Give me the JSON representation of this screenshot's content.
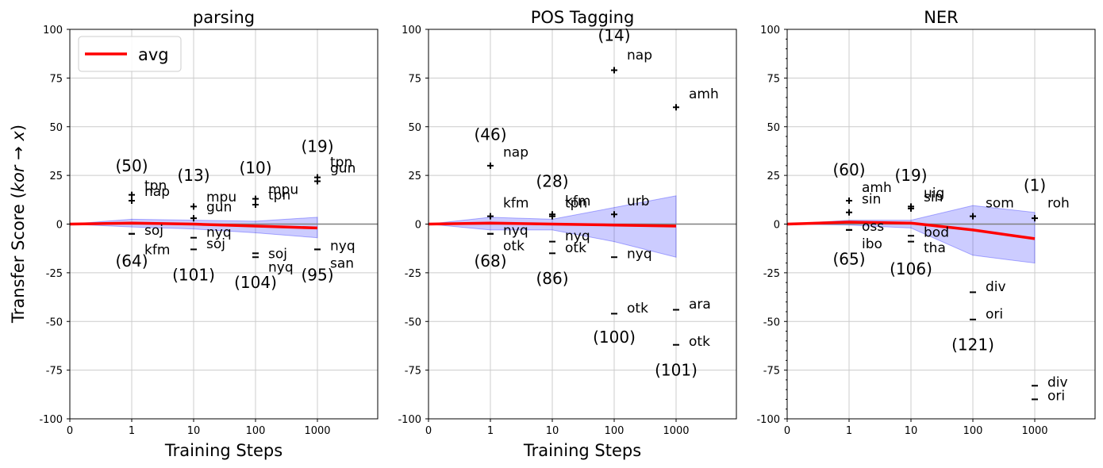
{
  "figure": {
    "ylabel_prefix": "Transfer Score (",
    "ylabel_italic": "kor",
    "ylabel_arrow": " → ",
    "ylabel_var": "x",
    "ylabel_suffix": ")",
    "legend_label": "avg"
  },
  "colors": {
    "avg_line": "#ff0000",
    "band": "#0000ff",
    "grid": "#cccccc",
    "zero_line": "#808080"
  },
  "chart_data": [
    {
      "type": "scatter",
      "title": "parsing",
      "xlabel": "Training Steps",
      "ylim": [
        -100,
        100
      ],
      "yticks": [
        -100,
        -75,
        -50,
        -25,
        0,
        25,
        50,
        75,
        100
      ],
      "xticks": [
        {
          "step": 0,
          "label": "0"
        },
        {
          "step": 1,
          "label": "1"
        },
        {
          "step": 10,
          "label": "10"
        },
        {
          "step": 100,
          "label": "100"
        },
        {
          "step": 1000,
          "label": "1000"
        }
      ],
      "avg": {
        "x": [
          0,
          1,
          10,
          100,
          1000
        ],
        "y": [
          0,
          0.5,
          0,
          -1,
          -2
        ]
      },
      "band": {
        "x": [
          0,
          1,
          10,
          100,
          1000
        ],
        "upper": [
          0,
          2.5,
          2,
          1.5,
          3.5
        ],
        "lower": [
          0,
          -1.5,
          -2.5,
          -4.5,
          -7
        ]
      },
      "counts": [
        {
          "step": 1,
          "label": "(50)",
          "y": 30
        },
        {
          "step": 1,
          "label": "(64)",
          "y": -19
        },
        {
          "step": 10,
          "label": "(13)",
          "y": 25
        },
        {
          "step": 10,
          "label": "(101)",
          "y": -26
        },
        {
          "step": 100,
          "label": "(10)",
          "y": 29
        },
        {
          "step": 100,
          "label": "(104)",
          "y": -30
        },
        {
          "step": 1000,
          "label": "(19)",
          "y": 40
        },
        {
          "step": 1000,
          "label": "(95)",
          "y": -26
        }
      ],
      "points": [
        {
          "step": 1,
          "y": 15,
          "label": "tpn",
          "ly": 20
        },
        {
          "step": 1,
          "y": 12,
          "label": "nap",
          "ly": 17
        },
        {
          "step": 1,
          "y": -5,
          "label": "soj",
          "ly": -3
        },
        {
          "step": 1,
          "y": -5,
          "label": "kfm",
          "ly": -13
        },
        {
          "step": 10,
          "y": 9,
          "label": "mpu",
          "ly": 14
        },
        {
          "step": 10,
          "y": 3,
          "label": "gun",
          "ly": 9
        },
        {
          "step": 10,
          "y": -7,
          "label": "nyq",
          "ly": -4
        },
        {
          "step": 10,
          "y": -13,
          "label": "soj",
          "ly": -10
        },
        {
          "step": 100,
          "y": 13,
          "label": "mpu",
          "ly": 18
        },
        {
          "step": 100,
          "y": 10,
          "label": "tpn",
          "ly": 15
        },
        {
          "step": 100,
          "y": -15,
          "label": "soj",
          "ly": -15
        },
        {
          "step": 100,
          "y": -17,
          "label": "nyq",
          "ly": -22
        },
        {
          "step": 1000,
          "y": 24,
          "label": "tpn",
          "ly": 32
        },
        {
          "step": 1000,
          "y": 22,
          "label": "gun",
          "ly": 29
        },
        {
          "step": 1000,
          "y": -13,
          "label": "nyq",
          "ly": -11
        },
        {
          "step": 1000,
          "y": -13,
          "label": "san",
          "ly": -20
        }
      ]
    },
    {
      "type": "scatter",
      "title": "POS Tagging",
      "xlabel": "Training Steps",
      "ylim": [
        -100,
        100
      ],
      "yticks": [
        -100,
        -75,
        -50,
        -25,
        0,
        25,
        50,
        75,
        100
      ],
      "xticks": [
        {
          "step": 0,
          "label": "0"
        },
        {
          "step": 1,
          "label": "1"
        },
        {
          "step": 10,
          "label": "10"
        },
        {
          "step": 100,
          "label": "100"
        },
        {
          "step": 1000,
          "label": "1000"
        }
      ],
      "avg": {
        "x": [
          0,
          1,
          10,
          100,
          1000
        ],
        "y": [
          0,
          0.5,
          0,
          -0.5,
          -1
        ]
      },
      "band": {
        "x": [
          0,
          1,
          10,
          100,
          1000
        ],
        "upper": [
          0,
          3.5,
          2.5,
          8.5,
          14.5
        ],
        "lower": [
          0,
          -3,
          -3,
          -9,
          -17
        ]
      },
      "counts": [
        {
          "step": 1,
          "label": "(46)",
          "y": 46
        },
        {
          "step": 1,
          "label": "(68)",
          "y": -19
        },
        {
          "step": 10,
          "label": "(28)",
          "y": 22
        },
        {
          "step": 10,
          "label": "(86)",
          "y": -28
        },
        {
          "step": 100,
          "label": "(14)",
          "y": 97
        },
        {
          "step": 100,
          "label": "(100)",
          "y": -58
        },
        {
          "step": 1000,
          "label": "(101)",
          "y": -75
        }
      ],
      "points": [
        {
          "step": 1,
          "y": 30,
          "label": "nap",
          "ly": 37
        },
        {
          "step": 1,
          "y": 4,
          "label": "kfm",
          "ly": 11
        },
        {
          "step": 1,
          "y": -5,
          "label": "nyq",
          "ly": -3
        },
        {
          "step": 1,
          "y": -5,
          "label": "otk",
          "ly": -11
        },
        {
          "step": 10,
          "y": 5,
          "label": "kfm",
          "ly": 12
        },
        {
          "step": 10,
          "y": 4,
          "label": "tpn",
          "ly": 11
        },
        {
          "step": 10,
          "y": -9,
          "label": "nyq",
          "ly": -6
        },
        {
          "step": 10,
          "y": -15,
          "label": "otk",
          "ly": -12
        },
        {
          "step": 100,
          "y": 79,
          "label": "nap",
          "ly": 87
        },
        {
          "step": 100,
          "y": 5,
          "label": "urb",
          "ly": 12
        },
        {
          "step": 100,
          "y": -17,
          "label": "nyq",
          "ly": -15
        },
        {
          "step": 100,
          "y": -46,
          "label": "otk",
          "ly": -43
        },
        {
          "step": 1000,
          "y": 60,
          "label": "amh",
          "ly": 67
        },
        {
          "step": 1000,
          "y": -44,
          "label": "ara",
          "ly": -41
        },
        {
          "step": 1000,
          "y": -62,
          "label": "otk",
          "ly": -60
        }
      ]
    },
    {
      "type": "scatter",
      "title": "NER",
      "xlabel": "",
      "ylim": [
        -100,
        100
      ],
      "yticks": [
        -100,
        -75,
        -50,
        -25,
        0,
        25,
        50,
        75,
        100
      ],
      "xticks": [
        {
          "step": 0,
          "label": "0"
        },
        {
          "step": 1,
          "label": "1"
        },
        {
          "step": 10,
          "label": "10"
        },
        {
          "step": 100,
          "label": "100"
        },
        {
          "step": 1000,
          "label": "1000"
        }
      ],
      "avg": {
        "x": [
          0,
          1,
          10,
          100,
          1000
        ],
        "y": [
          0,
          1,
          0.5,
          -3,
          -7.5
        ]
      },
      "band": {
        "x": [
          0,
          1,
          10,
          100,
          1000
        ],
        "upper": [
          0,
          2,
          2,
          9.5,
          6
        ],
        "lower": [
          0,
          -0.5,
          -2,
          -16,
          -20
        ]
      },
      "counts": [
        {
          "step": 1,
          "label": "(60)",
          "y": 28
        },
        {
          "step": 1,
          "label": "(65)",
          "y": -18
        },
        {
          "step": 10,
          "label": "(19)",
          "y": 25
        },
        {
          "step": 10,
          "label": "(106)",
          "y": -23
        },
        {
          "step": 100,
          "label": "(121)",
          "y": -62
        },
        {
          "step": 1000,
          "label": "(1)",
          "y": 20
        }
      ],
      "points": [
        {
          "step": 1,
          "y": 12,
          "label": "amh",
          "ly": 19
        },
        {
          "step": 1,
          "y": 6,
          "label": "sin",
          "ly": 13
        },
        {
          "step": 1,
          "y": -3,
          "label": "oss",
          "ly": -1
        },
        {
          "step": 1,
          "y": -3,
          "label": "ibo",
          "ly": -10
        },
        {
          "step": 10,
          "y": 9,
          "label": "uig",
          "ly": 16
        },
        {
          "step": 10,
          "y": 8,
          "label": "sin",
          "ly": 14
        },
        {
          "step": 10,
          "y": -6,
          "label": "bod",
          "ly": -4
        },
        {
          "step": 10,
          "y": -9,
          "label": "tha",
          "ly": -12
        },
        {
          "step": 100,
          "y": 4,
          "label": "som",
          "ly": 11
        },
        {
          "step": 100,
          "y": -35,
          "label": "div",
          "ly": -32
        },
        {
          "step": 100,
          "y": -49,
          "label": "ori",
          "ly": -46
        },
        {
          "step": 1000,
          "y": 3,
          "label": "roh",
          "ly": 11
        },
        {
          "step": 1000,
          "y": -83,
          "label": "div",
          "ly": -81
        },
        {
          "step": 1000,
          "y": -90,
          "label": "ori",
          "ly": -88
        }
      ]
    }
  ]
}
